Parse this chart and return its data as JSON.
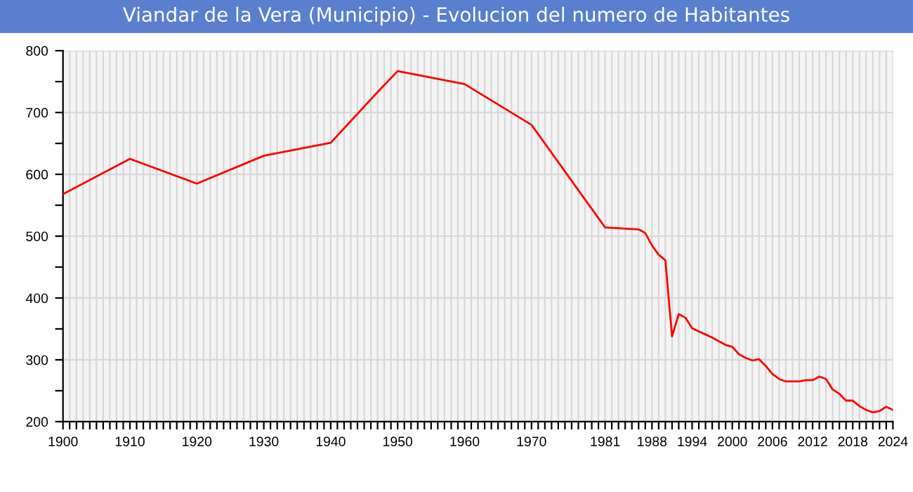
{
  "chart_data": {
    "type": "line",
    "title": "Viandar de la Vera (Municipio) - Evolucion del numero de Habitantes",
    "x": [
      1900,
      1910,
      1920,
      1930,
      1940,
      1947,
      1950,
      1960,
      1970,
      1981,
      1986,
      1987,
      1988,
      1989,
      1990,
      1991,
      1992,
      1993,
      1994,
      1995,
      1996,
      1997,
      1998,
      1999,
      2000,
      2001,
      2002,
      2003,
      2004,
      2005,
      2006,
      2007,
      2008,
      2009,
      2010,
      2011,
      2012,
      2013,
      2014,
      2015,
      2016,
      2017,
      2018,
      2019,
      2020,
      2021,
      2022,
      2023,
      2024
    ],
    "series": [
      {
        "color": "#ff0000",
        "values": [
          568,
          625,
          585,
          630,
          651,
          733,
          767,
          746,
          680,
          514,
          511,
          505,
          485,
          470,
          461,
          338,
          374,
          368,
          351,
          346,
          341,
          336,
          330,
          324,
          321,
          309,
          303,
          299,
          301,
          290,
          277,
          269,
          265,
          265,
          265,
          267,
          267,
          273,
          269,
          252,
          245,
          234,
          234,
          225,
          219,
          215,
          217,
          224,
          219
        ]
      }
    ],
    "xlim": [
      1900,
      2024
    ],
    "ylim": [
      200,
      800
    ],
    "yticks": [
      200,
      {
        "value": 250,
        "label": null
      },
      300,
      {
        "value": 350,
        "label": null
      },
      400,
      {
        "value": 450,
        "label": null
      },
      500,
      {
        "value": 550,
        "label": null
      },
      600,
      {
        "value": 650,
        "label": null
      },
      700,
      {
        "value": 750,
        "label": null
      },
      800
    ],
    "xticks": [
      1900,
      {
        "value": 1901,
        "label": null
      },
      {
        "value": 1902,
        "label": null
      },
      {
        "value": 1903,
        "label": null
      },
      {
        "value": 1904,
        "label": null
      },
      {
        "value": 1905,
        "label": null
      },
      {
        "value": 1906,
        "label": null
      },
      {
        "value": 1907,
        "label": null
      },
      {
        "value": 1908,
        "label": null
      },
      {
        "value": 1909,
        "label": null
      },
      1910,
      {
        "value": 1911,
        "label": null
      },
      {
        "value": 1912,
        "label": null
      },
      {
        "value": 1913,
        "label": null
      },
      {
        "value": 1914,
        "label": null
      },
      {
        "value": 1915,
        "label": null
      },
      {
        "value": 1916,
        "label": null
      },
      {
        "value": 1917,
        "label": null
      },
      {
        "value": 1918,
        "label": null
      },
      {
        "value": 1919,
        "label": null
      },
      1920,
      {
        "value": 1921,
        "label": null
      },
      {
        "value": 1922,
        "label": null
      },
      {
        "value": 1923,
        "label": null
      },
      {
        "value": 1924,
        "label": null
      },
      {
        "value": 1925,
        "label": null
      },
      {
        "value": 1926,
        "label": null
      },
      {
        "value": 1927,
        "label": null
      },
      {
        "value": 1928,
        "label": null
      },
      {
        "value": 1929,
        "label": null
      },
      1930,
      {
        "value": 1931,
        "label": null
      },
      {
        "value": 1932,
        "label": null
      },
      {
        "value": 1933,
        "label": null
      },
      {
        "value": 1934,
        "label": null
      },
      {
        "value": 1935,
        "label": null
      },
      {
        "value": 1936,
        "label": null
      },
      {
        "value": 1937,
        "label": null
      },
      {
        "value": 1938,
        "label": null
      },
      {
        "value": 1939,
        "label": null
      },
      1940,
      {
        "value": 1941,
        "label": null
      },
      {
        "value": 1942,
        "label": null
      },
      {
        "value": 1943,
        "label": null
      },
      {
        "value": 1944,
        "label": null
      },
      {
        "value": 1945,
        "label": null
      },
      {
        "value": 1946,
        "label": null
      },
      {
        "value": 1947,
        "label": null
      },
      {
        "value": 1948,
        "label": null
      },
      {
        "value": 1949,
        "label": null
      },
      1950,
      {
        "value": 1951,
        "label": null
      },
      {
        "value": 1952,
        "label": null
      },
      {
        "value": 1953,
        "label": null
      },
      {
        "value": 1954,
        "label": null
      },
      {
        "value": 1955,
        "label": null
      },
      {
        "value": 1956,
        "label": null
      },
      {
        "value": 1957,
        "label": null
      },
      {
        "value": 1958,
        "label": null
      },
      {
        "value": 1959,
        "label": null
      },
      1960,
      {
        "value": 1961,
        "label": null
      },
      {
        "value": 1962,
        "label": null
      },
      {
        "value": 1963,
        "label": null
      },
      {
        "value": 1964,
        "label": null
      },
      {
        "value": 1965,
        "label": null
      },
      {
        "value": 1966,
        "label": null
      },
      {
        "value": 1967,
        "label": null
      },
      {
        "value": 1968,
        "label": null
      },
      {
        "value": 1969,
        "label": null
      },
      1970,
      {
        "value": 1971,
        "label": null
      },
      {
        "value": 1972,
        "label": null
      },
      {
        "value": 1973,
        "label": null
      },
      {
        "value": 1974,
        "label": null
      },
      {
        "value": 1975,
        "label": null
      },
      {
        "value": 1976,
        "label": null
      },
      {
        "value": 1977,
        "label": null
      },
      {
        "value": 1978,
        "label": null
      },
      {
        "value": 1979,
        "label": null
      },
      {
        "value": 1980,
        "label": null
      },
      1981,
      {
        "value": 1982,
        "label": null
      },
      {
        "value": 1983,
        "label": null
      },
      {
        "value": 1984,
        "label": null
      },
      {
        "value": 1985,
        "label": null
      },
      {
        "value": 1986,
        "label": null
      },
      {
        "value": 1987,
        "label": null
      },
      1988,
      {
        "value": 1989,
        "label": null
      },
      {
        "value": 1990,
        "label": null
      },
      {
        "value": 1991,
        "label": null
      },
      {
        "value": 1992,
        "label": null
      },
      {
        "value": 1993,
        "label": null
      },
      1994,
      {
        "value": 1995,
        "label": null
      },
      {
        "value": 1996,
        "label": null
      },
      {
        "value": 1997,
        "label": null
      },
      {
        "value": 1998,
        "label": null
      },
      {
        "value": 1999,
        "label": null
      },
      2000,
      {
        "value": 2001,
        "label": null
      },
      {
        "value": 2002,
        "label": null
      },
      {
        "value": 2003,
        "label": null
      },
      {
        "value": 2004,
        "label": null
      },
      {
        "value": 2005,
        "label": null
      },
      2006,
      {
        "value": 2007,
        "label": null
      },
      {
        "value": 2008,
        "label": null
      },
      {
        "value": 2009,
        "label": null
      },
      {
        "value": 2010,
        "label": null
      },
      {
        "value": 2011,
        "label": null
      },
      2012,
      {
        "value": 2013,
        "label": null
      },
      {
        "value": 2014,
        "label": null
      },
      {
        "value": 2015,
        "label": null
      },
      {
        "value": 2016,
        "label": null
      },
      {
        "value": 2017,
        "label": null
      },
      2018,
      {
        "value": 2019,
        "label": null
      },
      {
        "value": 2020,
        "label": null
      },
      {
        "value": 2021,
        "label": null
      },
      {
        "value": 2022,
        "label": null
      },
      {
        "value": 2023,
        "label": null
      },
      2024
    ],
    "grid": true,
    "marker": "none",
    "line_style": "solid"
  }
}
